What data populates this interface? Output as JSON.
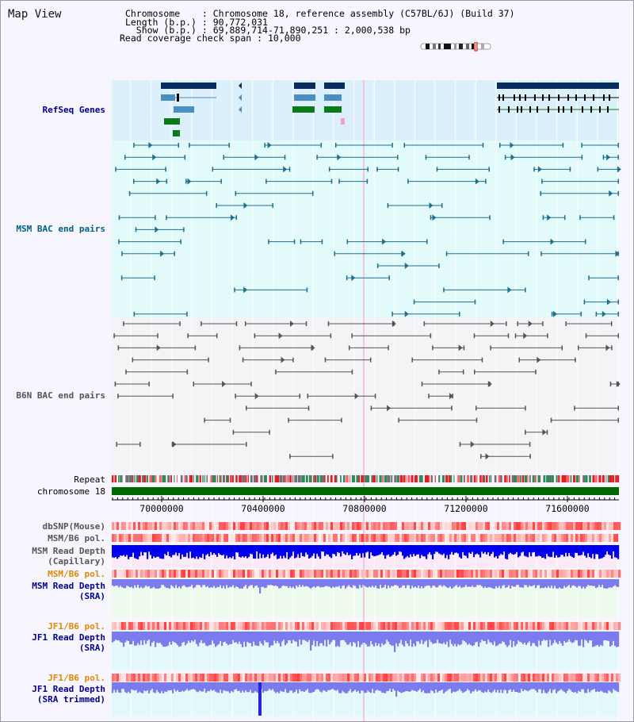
{
  "title": "Map View",
  "info": {
    "chromosome_label": "Chromosome",
    "chromosome_value": "Chromosome 18, reference assembly (C57BL/6J) (Build 37)",
    "length_label": "Length (b.p.)",
    "length_value": "90,772,031",
    "show_label": "Show (b.p.)",
    "show_value": "69,889,714-71,890,251 : 2,000,538 bp",
    "coverage_label": "Read coverage check span",
    "coverage_value": "10,000"
  },
  "tracks": {
    "refseq": "RefSeq Genes",
    "msm_bac": "MSM BAC end pairs",
    "b6n_bac": "B6N BAC end pairs",
    "repeat": "Repeat",
    "chromosome": "chromosome 18",
    "dbsnp": "dbSNP(Mouse)",
    "msm_b6_pol_1": "MSM/B6 pol.",
    "msm_depth_cap_1": "MSM Read Depth",
    "msm_depth_cap_2": "(Capillary)",
    "msm_b6_pol_2": "MSM/B6 pol.",
    "msm_depth_sra_1": "MSM Read Depth",
    "msm_depth_sra_2": "(SRA)",
    "jf1_b6_pol_1": "JF1/B6 pol.",
    "jf1_depth_sra_1": "JF1 Read Depth",
    "jf1_depth_sra_2": "(SRA)",
    "jf1_b6_pol_2": "JF1/B6 pol.",
    "jf1_depth_trim_1": "JF1 Read Depth",
    "jf1_depth_trim_2": "(SRA trimmed)"
  },
  "axis": {
    "ticks": [
      "70000000",
      "70400000",
      "70800000",
      "71200000",
      "71600000"
    ]
  },
  "colors": {
    "refseq_bg": "#dcf0fb",
    "msm_bg": "#e2fafa",
    "b6n_bg": "#f4f4f6",
    "gene_dark": "#0a2c5c",
    "gene_mid": "#4a8fbf",
    "gene_green": "#0a7a1a",
    "msm_line": "#1e6f8f",
    "b6n_line": "#555555",
    "chromosome_bar": "#006600",
    "depth_capillary": "#0000ee",
    "depth_sra": "#7b7bee",
    "label_blue": "#00008b",
    "label_teal": "#006080",
    "label_orange": "#e08a00"
  }
}
